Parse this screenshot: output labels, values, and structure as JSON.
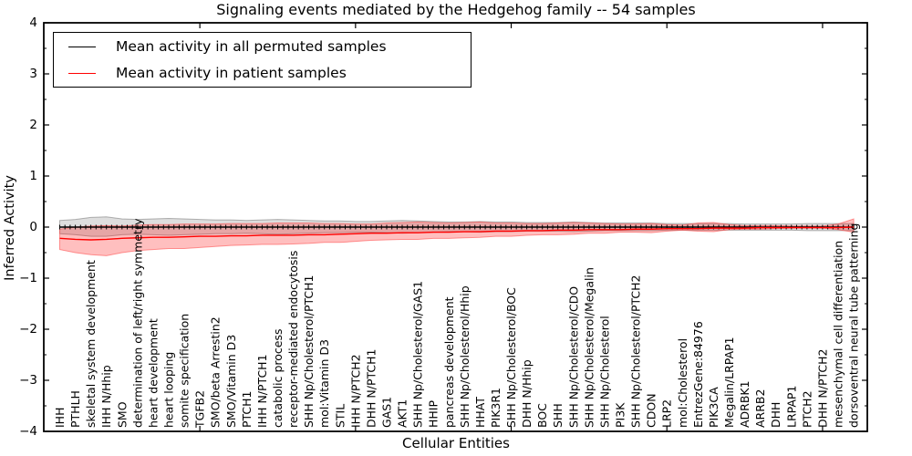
{
  "title": "Signaling events mediated by the Hedgehog family -- 54 samples",
  "legend": {
    "items": [
      {
        "label": "Mean activity in all permuted samples",
        "color": "#000000"
      },
      {
        "label": "Mean activity in patient samples",
        "color": "#ff0000"
      }
    ]
  },
  "axes": {
    "ylabel": "Inferred Activity",
    "xlabel": "Cellular Entities",
    "ytick_labels": [
      "4",
      "3",
      "2",
      "1",
      "0",
      "−1",
      "−2",
      "−3",
      "−4"
    ]
  },
  "colors": {
    "permuted_line": "#000000",
    "patient_line": "#ff0000",
    "permuted_band_fill": "rgba(0,0,0,0.13)",
    "patient_band_fill": "rgba(255,0,0,0.25)",
    "permuted_band_edge": "rgba(0,0,0,0.28)",
    "patient_band_edge": "rgba(255,70,70,0.55)"
  },
  "chart_data": {
    "type": "line",
    "title": "Signaling events mediated by the Hedgehog family -- 54 samples",
    "xlabel": "Cellular Entities",
    "ylabel": "Inferred Activity",
    "ylim": [
      -4,
      4
    ],
    "yticks": [
      4,
      3,
      2,
      1,
      0,
      -1,
      -2,
      -3,
      -4
    ],
    "grid": false,
    "legend_position": "upper left",
    "categories": [
      "IHH",
      "PTHLH",
      "skeletal system development",
      "IHH N/Hhip",
      "SMO",
      "determination of left/right symmetry",
      "heart development",
      "heart looping",
      "somite specification",
      "TGFB2",
      "SMO/beta Arrestin2",
      "SMO/Vitamin D3",
      "PTCH1",
      "IHH N/PTCH1",
      "catabolic process",
      "receptor-mediated endocytosis",
      "SHH Np/Cholesterol/PTCH1",
      "mol:Vitamin D3",
      "STIL",
      "IHH N/PTCH2",
      "DHH N/PTCH1",
      "GAS1",
      "AKT1",
      "SHH Np/Cholesterol/GAS1",
      "HHIP",
      "pancreas development",
      "SHH Np/Cholesterol/Hhip",
      "HHAT",
      "PIK3R1",
      "SHH Np/Cholesterol/BOC",
      "DHH N/Hhip",
      "BOC",
      "SHH",
      "SHH Np/Cholesterol/CDO",
      "SHH Np/Cholesterol/Megalin",
      "SHH Np/Cholesterol",
      "PI3K",
      "SHH Np/Cholesterol/PTCH2",
      "CDON",
      "LRP2",
      "mol:Cholesterol",
      "EntrezGene:84976",
      "PIK3CA",
      "Megalin/LRPAP1",
      "ADRBK1",
      "ARRB2",
      "DHH",
      "LRPAP1",
      "PTCH2",
      "DHH N/PTCH2",
      "mesenchymal cell differentiation",
      "dorsoventral neural tube patterning"
    ],
    "series": [
      {
        "name": "Mean activity in all permuted samples",
        "color": "#000000",
        "values": [
          0,
          0,
          0,
          0,
          0,
          0,
          0,
          0,
          0,
          0,
          0,
          0,
          0,
          0,
          0,
          0,
          0,
          0,
          0,
          0,
          0,
          0,
          0,
          0,
          0,
          0,
          0,
          0,
          0,
          0,
          0,
          0,
          0,
          0,
          0,
          0,
          0,
          0,
          0,
          0,
          0,
          0,
          0,
          0,
          0,
          0,
          0,
          0,
          0,
          0,
          0,
          0
        ],
        "band": {
          "upper": [
            0.13,
            0.15,
            0.19,
            0.2,
            0.16,
            0.15,
            0.16,
            0.17,
            0.16,
            0.15,
            0.14,
            0.14,
            0.13,
            0.14,
            0.15,
            0.14,
            0.13,
            0.12,
            0.12,
            0.11,
            0.11,
            0.12,
            0.13,
            0.12,
            0.11,
            0.1,
            0.1,
            0.11,
            0.1,
            0.1,
            0.09,
            0.09,
            0.09,
            0.1,
            0.09,
            0.08,
            0.08,
            0.08,
            0.08,
            0.07,
            0.07,
            0.07,
            0.07,
            0.07,
            0.06,
            0.06,
            0.06,
            0.06,
            0.07,
            0.07,
            0.07,
            0.07
          ],
          "lower": [
            -0.13,
            -0.15,
            -0.18,
            -0.18,
            -0.15,
            -0.14,
            -0.15,
            -0.16,
            -0.15,
            -0.14,
            -0.13,
            -0.13,
            -0.12,
            -0.13,
            -0.14,
            -0.13,
            -0.12,
            -0.11,
            -0.11,
            -0.1,
            -0.1,
            -0.11,
            -0.12,
            -0.11,
            -0.1,
            -0.09,
            -0.09,
            -0.1,
            -0.09,
            -0.09,
            -0.08,
            -0.08,
            -0.08,
            -0.09,
            -0.08,
            -0.07,
            -0.07,
            -0.07,
            -0.07,
            -0.06,
            -0.06,
            -0.06,
            -0.06,
            -0.06,
            -0.06,
            -0.06,
            -0.06,
            -0.06,
            -0.07,
            -0.07,
            -0.07,
            -0.07
          ]
        }
      },
      {
        "name": "Mean activity in patient samples",
        "color": "#ff0000",
        "values": [
          -0.22,
          -0.24,
          -0.25,
          -0.24,
          -0.22,
          -0.21,
          -0.2,
          -0.2,
          -0.19,
          -0.18,
          -0.18,
          -0.17,
          -0.17,
          -0.16,
          -0.16,
          -0.16,
          -0.15,
          -0.15,
          -0.14,
          -0.13,
          -0.12,
          -0.12,
          -0.11,
          -0.11,
          -0.1,
          -0.1,
          -0.09,
          -0.09,
          -0.08,
          -0.08,
          -0.07,
          -0.07,
          -0.06,
          -0.06,
          -0.05,
          -0.05,
          -0.05,
          -0.04,
          -0.04,
          -0.03,
          -0.03,
          -0.03,
          -0.02,
          -0.02,
          -0.02,
          -0.01,
          -0.01,
          -0.01,
          -0.01,
          -0.01,
          -0.01,
          0.0
        ],
        "band": {
          "upper": [
            -0.04,
            0.0,
            0.02,
            0.03,
            0.02,
            0.04,
            0.05,
            0.05,
            0.06,
            0.06,
            0.06,
            0.07,
            0.07,
            0.07,
            0.08,
            0.08,
            0.08,
            0.07,
            0.07,
            0.06,
            0.06,
            0.08,
            0.09,
            0.1,
            0.09,
            0.08,
            0.09,
            0.1,
            0.08,
            0.08,
            0.07,
            0.07,
            0.08,
            0.09,
            0.08,
            0.07,
            0.06,
            0.06,
            0.07,
            0.05,
            0.04,
            0.08,
            0.09,
            0.05,
            0.03,
            0.03,
            0.03,
            0.02,
            0.02,
            0.02,
            0.06,
            0.16
          ],
          "lower": [
            -0.44,
            -0.5,
            -0.54,
            -0.56,
            -0.5,
            -0.46,
            -0.44,
            -0.42,
            -0.42,
            -0.4,
            -0.38,
            -0.36,
            -0.35,
            -0.34,
            -0.34,
            -0.33,
            -0.32,
            -0.3,
            -0.3,
            -0.28,
            -0.26,
            -0.25,
            -0.24,
            -0.24,
            -0.22,
            -0.22,
            -0.21,
            -0.2,
            -0.18,
            -0.18,
            -0.16,
            -0.15,
            -0.15,
            -0.14,
            -0.12,
            -0.12,
            -0.1,
            -0.1,
            -0.11,
            -0.08,
            -0.06,
            -0.08,
            -0.09,
            -0.05,
            -0.04,
            -0.04,
            -0.03,
            -0.02,
            -0.02,
            -0.02,
            -0.05,
            -0.1
          ]
        }
      }
    ]
  }
}
